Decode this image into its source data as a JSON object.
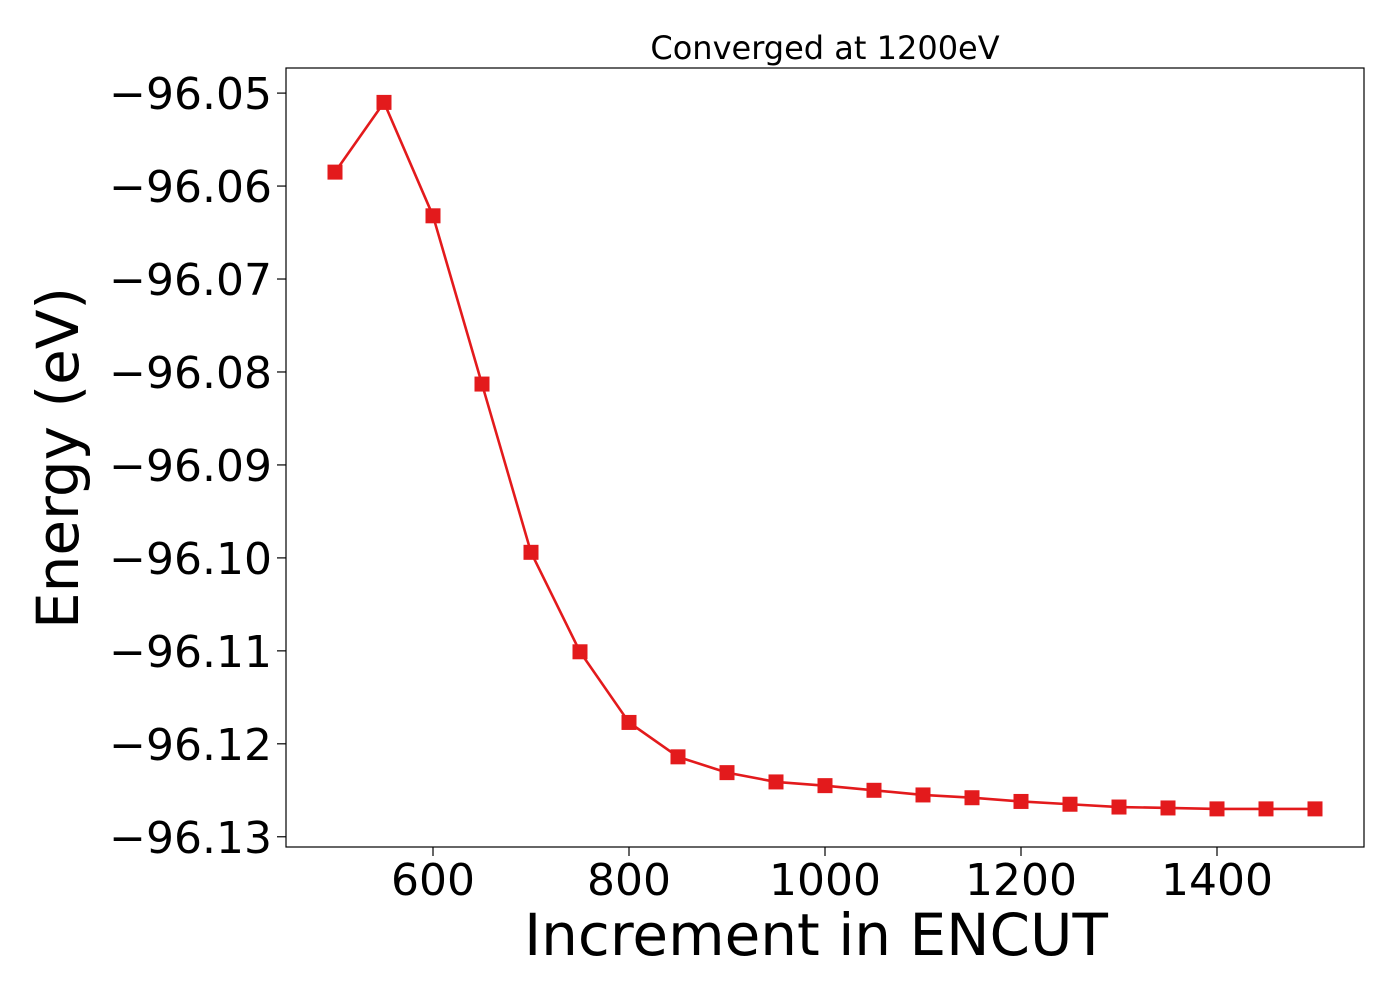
{
  "chart_data": {
    "type": "line",
    "title": "Converged at 1200eV",
    "xlabel": "Increment in ENCUT",
    "ylabel": "Energy (eV)",
    "xlim": [
      450,
      1550
    ],
    "ylim": [
      -96.1311,
      -96.0473
    ],
    "x_ticks": [
      600,
      800,
      1000,
      1200,
      1400
    ],
    "x_tick_labels": [
      "600",
      "800",
      "1000",
      "1200",
      "1400"
    ],
    "y_ticks": [
      -96.05,
      -96.06,
      -96.07,
      -96.08,
      -96.09,
      -96.1,
      -96.11,
      -96.12,
      -96.13
    ],
    "y_tick_labels": [
      "−96.05",
      "−96.06",
      "−96.07",
      "−96.08",
      "−96.09",
      "−96.10",
      "−96.11",
      "−96.12",
      "−96.13"
    ],
    "grid": false,
    "series": [
      {
        "marker": "square",
        "color": "#e31a1c",
        "x": [
          500,
          550,
          600,
          650,
          700,
          750,
          800,
          850,
          900,
          950,
          1000,
          1050,
          1100,
          1150,
          1200,
          1250,
          1300,
          1350,
          1400,
          1450,
          1500
        ],
        "y": [
          -96.0585,
          -96.051,
          -96.0632,
          -96.0813,
          -96.0994,
          -96.1101,
          -96.1177,
          -96.1214,
          -96.1231,
          -96.1241,
          -96.1245,
          -96.125,
          -96.1255,
          -96.1258,
          -96.1262,
          -96.1265,
          -96.1268,
          -96.1269,
          -96.127,
          -96.127,
          -96.127
        ]
      }
    ]
  }
}
